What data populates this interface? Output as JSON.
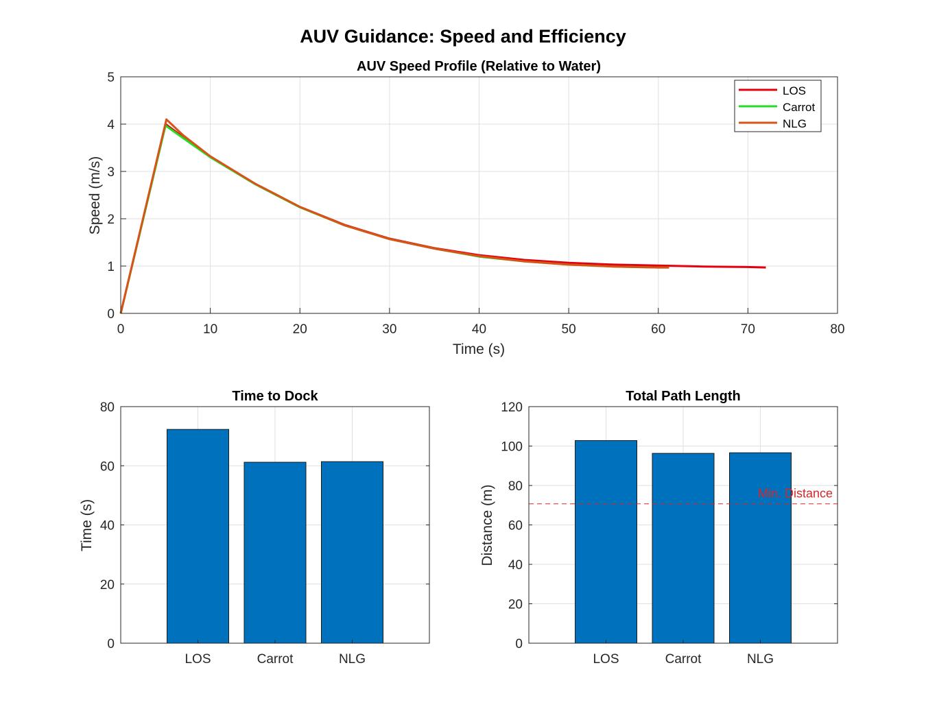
{
  "figure": {
    "title": "AUV Guidance: Speed and Efficiency"
  },
  "chart_data": [
    {
      "type": "line",
      "title": "AUV Speed Profile (Relative to Water)",
      "xlabel": "Time (s)",
      "ylabel": "Speed (m/s)",
      "xlim": [
        0,
        80
      ],
      "ylim": [
        0,
        5
      ],
      "xticks": [
        "0",
        "10",
        "20",
        "30",
        "40",
        "50",
        "60",
        "70",
        "80"
      ],
      "yticks": [
        "0",
        "1",
        "2",
        "3",
        "4",
        "5"
      ],
      "grid": true,
      "legend_position": "top-right",
      "series": [
        {
          "name": "LOS",
          "color": "#e3000f",
          "x": [
            0,
            5,
            7,
            10,
            15,
            20,
            25,
            30,
            35,
            40,
            45,
            50,
            55,
            60,
            65,
            70,
            72
          ],
          "y": [
            0,
            4.0,
            3.72,
            3.31,
            2.74,
            2.25,
            1.87,
            1.58,
            1.38,
            1.23,
            1.13,
            1.07,
            1.03,
            1.01,
            0.99,
            0.98,
            0.97
          ]
        },
        {
          "name": "Carrot",
          "color": "#22dd22",
          "x": [
            0,
            5,
            7,
            10,
            15,
            20,
            25,
            30,
            35,
            40,
            45,
            50,
            55,
            60,
            61.2
          ],
          "y": [
            0,
            3.97,
            3.7,
            3.3,
            2.73,
            2.24,
            1.86,
            1.57,
            1.37,
            1.2,
            1.1,
            1.03,
            0.99,
            0.97,
            0.97
          ]
        },
        {
          "name": "NLG",
          "color": "#d95319",
          "x": [
            0,
            5.1,
            7,
            10,
            15,
            20,
            25,
            30,
            35,
            40,
            45,
            50,
            55,
            60,
            61.2
          ],
          "y": [
            0,
            4.1,
            3.76,
            3.32,
            2.74,
            2.25,
            1.86,
            1.57,
            1.37,
            1.21,
            1.1,
            1.03,
            0.99,
            0.97,
            0.97
          ]
        }
      ]
    },
    {
      "type": "bar",
      "title": "Time to Dock",
      "xlabel": "",
      "ylabel": "Time (s)",
      "categories": [
        "LOS",
        "Carrot",
        "NLG"
      ],
      "values": [
        72.3,
        61.2,
        61.4
      ],
      "ylim": [
        0,
        80
      ],
      "yticks": [
        "0",
        "20",
        "40",
        "60",
        "80"
      ],
      "grid": true,
      "bar_color": "#0072bd"
    },
    {
      "type": "bar",
      "title": "Total Path Length",
      "xlabel": "",
      "ylabel": "Distance (m)",
      "categories": [
        "LOS",
        "Carrot",
        "NLG"
      ],
      "values": [
        102.8,
        96.3,
        96.6
      ],
      "ylim": [
        0,
        120
      ],
      "yticks": [
        "0",
        "20",
        "40",
        "60",
        "80",
        "100",
        "120"
      ],
      "grid": true,
      "bar_color": "#0072bd",
      "reference_line": {
        "value": 70.7,
        "label": "Min. Distance",
        "color": "#d62728"
      }
    }
  ]
}
